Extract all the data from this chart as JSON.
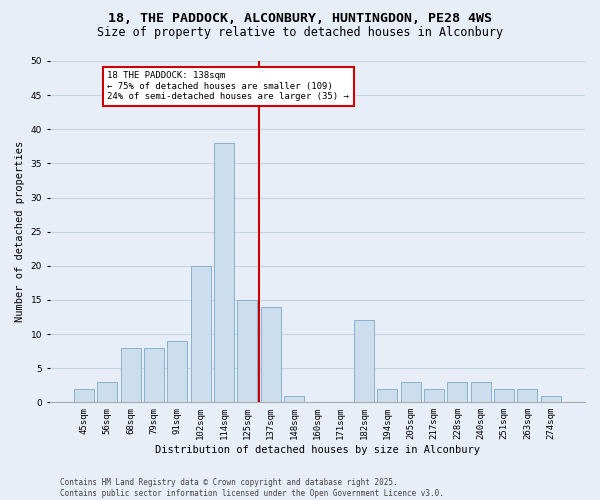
{
  "title_line1": "18, THE PADDOCK, ALCONBURY, HUNTINGDON, PE28 4WS",
  "title_line2": "Size of property relative to detached houses in Alconbury",
  "xlabel": "Distribution of detached houses by size in Alconbury",
  "ylabel": "Number of detached properties",
  "categories": [
    "45sqm",
    "56sqm",
    "68sqm",
    "79sqm",
    "91sqm",
    "102sqm",
    "114sqm",
    "125sqm",
    "137sqm",
    "148sqm",
    "160sqm",
    "171sqm",
    "182sqm",
    "194sqm",
    "205sqm",
    "217sqm",
    "228sqm",
    "240sqm",
    "251sqm",
    "263sqm",
    "274sqm"
  ],
  "values": [
    2,
    3,
    8,
    8,
    9,
    20,
    38,
    15,
    14,
    1,
    0,
    0,
    12,
    2,
    3,
    2,
    3,
    3,
    2,
    2,
    1
  ],
  "bar_color": "#ccdded",
  "bar_edge_color": "#7aaac8",
  "annotation_text_line1": "18 THE PADDOCK: 138sqm",
  "annotation_text_line2": "← 75% of detached houses are smaller (109)",
  "annotation_text_line3": "24% of semi-detached houses are larger (35) →",
  "annotation_box_color": "#ffffff",
  "annotation_box_edge_color": "#cc0000",
  "vline_color": "#cc0000",
  "grid_color": "#c8d4e4",
  "background_color": "#e8eef8",
  "ylim": [
    0,
    50
  ],
  "yticks": [
    0,
    5,
    10,
    15,
    20,
    25,
    30,
    35,
    40,
    45,
    50
  ],
  "title_fontsize": 9.5,
  "subtitle_fontsize": 8.5,
  "axis_label_fontsize": 7.5,
  "tick_fontsize": 6.5,
  "annotation_fontsize": 6.5,
  "footer_fontsize": 5.5,
  "footer": "Contains HM Land Registry data © Crown copyright and database right 2025.\nContains public sector information licensed under the Open Government Licence v3.0."
}
